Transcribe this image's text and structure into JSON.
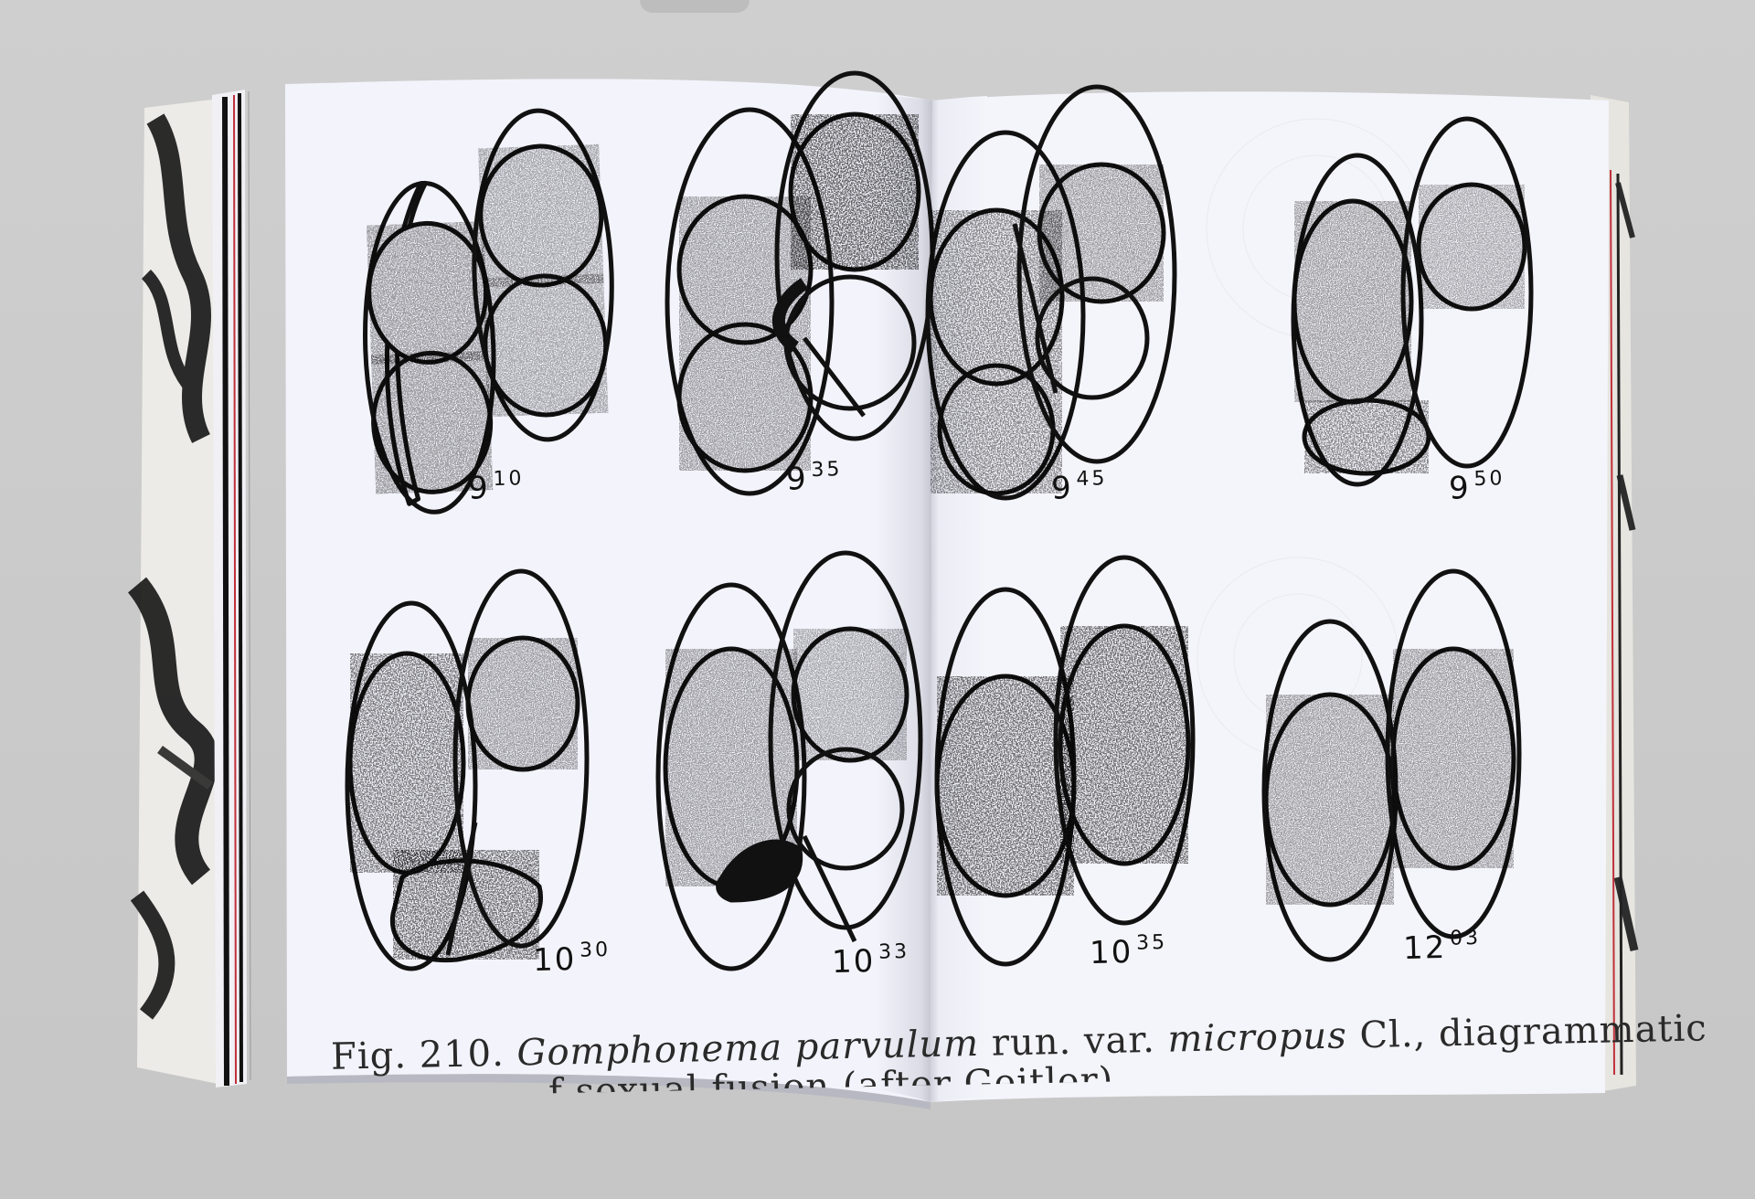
{
  "figure_labels": [
    {
      "hour": "9",
      "minutes": "10"
    },
    {
      "hour": "9",
      "minutes": "35"
    },
    {
      "hour": "9",
      "minutes": "45"
    },
    {
      "hour": "9",
      "minutes": "50"
    },
    {
      "hour": "10",
      "minutes": "30"
    },
    {
      "hour": "10",
      "minutes": "33"
    },
    {
      "hour": "10",
      "minutes": "35"
    },
    {
      "hour": "12",
      "minutes": "03"
    }
  ],
  "caption": {
    "prefix": "Fig. 210.",
    "genus_species": "Gomphonema parvulum",
    "continuation": "run. var.",
    "variety": "micropus",
    "author": "Cl., diagrammatic",
    "line2": "f sexual fusion (after Geitler)"
  },
  "colors": {
    "background": "#c9c9c9",
    "page": "#f3f3fb",
    "ink": "#111111"
  }
}
